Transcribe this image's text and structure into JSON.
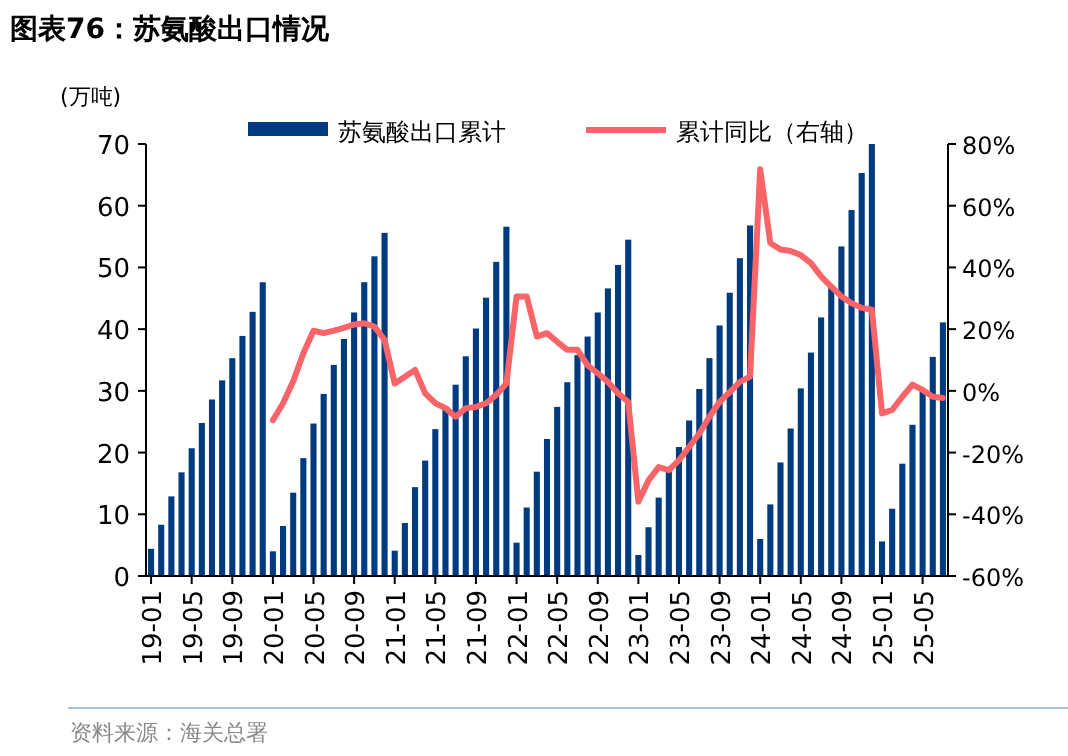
{
  "chart_data": {
    "type": "bar",
    "title": "图表76：苏氨酸出口情况",
    "ylabel": "(万吨)",
    "categories": [
      "19-01",
      null,
      null,
      null,
      "19-05",
      null,
      null,
      null,
      "19-09",
      null,
      null,
      null,
      "20-01",
      null,
      null,
      null,
      "20-05",
      null,
      null,
      null,
      "20-09",
      null,
      null,
      null,
      "21-01",
      null,
      null,
      null,
      "21-05",
      null,
      null,
      null,
      "21-09",
      null,
      null,
      null,
      "22-01",
      null,
      null,
      null,
      "22-05",
      null,
      null,
      null,
      "22-09",
      null,
      null,
      null,
      "23-01",
      null,
      null,
      null,
      "23-05",
      null,
      null,
      null,
      "23-09",
      null,
      null,
      null,
      "24-01",
      null,
      null,
      null,
      "24-05",
      null,
      null,
      null,
      "24-09",
      null,
      null,
      null,
      "25-01",
      null,
      null,
      null,
      "25-05",
      null,
      null
    ],
    "series": [
      {
        "name": "苏氨酸出口累计",
        "color": "#003b7f",
        "values": [
          4.4,
          8.3,
          12.9,
          16.8,
          20.7,
          24.8,
          28.6,
          31.7,
          35.3,
          38.9,
          42.8,
          47.6,
          4.0,
          8.1,
          13.5,
          19.1,
          24.7,
          29.5,
          34.2,
          38.4,
          42.7,
          47.6,
          51.8,
          55.6,
          4.1,
          8.6,
          14.4,
          18.7,
          23.8,
          27.5,
          31.0,
          35.6,
          40.1,
          45.1,
          50.9,
          56.6,
          5.4,
          11.1,
          16.9,
          22.2,
          27.4,
          31.4,
          35.8,
          38.8,
          42.7,
          46.6,
          50.4,
          54.5,
          3.4,
          7.9,
          12.7,
          16.9,
          20.9,
          25.2,
          30.3,
          35.3,
          40.6,
          45.9,
          51.5,
          56.8,
          6.0,
          11.6,
          18.4,
          23.9,
          30.4,
          36.2,
          41.9,
          47.1,
          53.4,
          59.3,
          65.3,
          70.0,
          5.6,
          10.9,
          18.2,
          24.5,
          30.1,
          35.5,
          41.1
        ]
      },
      {
        "name": "累计同比（右轴）",
        "type": "line",
        "axis": "y2",
        "color": "#f86468",
        "values": [
          null,
          null,
          null,
          null,
          null,
          null,
          null,
          null,
          null,
          null,
          null,
          null,
          -9.5,
          -4,
          3.1,
          12.2,
          19.5,
          18.7,
          19.5,
          20.4,
          21.5,
          21.9,
          20.8,
          16.5,
          2.4,
          4.6,
          6.8,
          -0.8,
          -4,
          -5.6,
          -8.4,
          -5.6,
          -5.2,
          -4,
          -1.3,
          2.4,
          30.6,
          30.6,
          17.6,
          18.7,
          15.9,
          13.3,
          13.3,
          8.3,
          5.7,
          2.9,
          -0.8,
          -3.6,
          -35.9,
          -29,
          -24.7,
          -25.7,
          -22.5,
          -18.2,
          -13.8,
          -8.4,
          -3.6,
          -0.4,
          2.9,
          4.6,
          71.8,
          47.9,
          45.8,
          45.3,
          44,
          41.4,
          37.1,
          33.8,
          30.6,
          28.4,
          26.9,
          26.3,
          -7.3,
          -6.2,
          -1.9,
          2,
          0.3,
          -1.9,
          -2.3
        ]
      }
    ],
    "ylim": [
      0,
      70
    ],
    "yticks": [
      0,
      10,
      20,
      30,
      40,
      50,
      60,
      70
    ],
    "y2lim": [
      -60,
      80
    ],
    "y2ticks": [
      {
        "value": -60,
        "label": "-60%"
      },
      {
        "value": -40,
        "label": "-40%"
      },
      {
        "value": -20,
        "label": "-20%"
      },
      {
        "value": 0,
        "label": "0%"
      },
      {
        "value": 20,
        "label": "20%"
      },
      {
        "value": 40,
        "label": "40%"
      },
      {
        "value": 60,
        "label": "60%"
      },
      {
        "value": 80,
        "label": "80%"
      }
    ],
    "legend": "top",
    "grid": false,
    "annotations": [
      "资料来源：海关总署"
    ]
  }
}
